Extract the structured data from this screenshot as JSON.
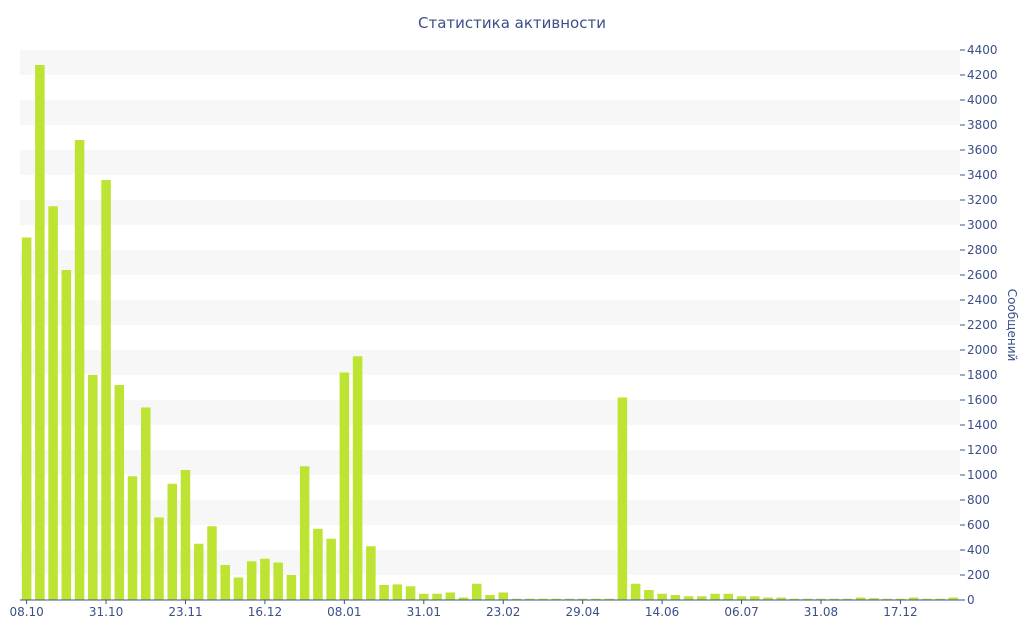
{
  "colors": {
    "bar": "#bde333",
    "band": "#f7f7f7",
    "axis_text": "#3b5088"
  },
  "chart_data": {
    "type": "bar",
    "title": "Статистика активности",
    "ylabel": "Сообщений",
    "xlabel": "",
    "ylim": [
      0,
      4400
    ],
    "y_ticks": [
      0,
      200,
      400,
      600,
      800,
      1000,
      1200,
      1400,
      1600,
      1800,
      2000,
      2200,
      2400,
      2600,
      2800,
      3000,
      3200,
      3400,
      3600,
      3800,
      4000,
      4200,
      4400
    ],
    "y_axis_side": "right",
    "grid": "alternating horizontal bands",
    "x_ticks": [
      {
        "label": "08.10",
        "index": 0
      },
      {
        "label": "31.10",
        "index": 6
      },
      {
        "label": "23.11",
        "index": 12
      },
      {
        "label": "16.12",
        "index": 18
      },
      {
        "label": "08.01",
        "index": 24
      },
      {
        "label": "31.01",
        "index": 30
      },
      {
        "label": "23.02",
        "index": 36
      },
      {
        "label": "29.04",
        "index": 42
      },
      {
        "label": "14.06",
        "index": 48
      },
      {
        "label": "06.07",
        "index": 54
      },
      {
        "label": "31.08",
        "index": 60
      },
      {
        "label": "17.12",
        "index": 66
      }
    ],
    "values": [
      2900,
      4280,
      3150,
      2640,
      3680,
      1800,
      3360,
      1720,
      990,
      1540,
      660,
      930,
      1040,
      450,
      590,
      280,
      180,
      310,
      330,
      300,
      200,
      1070,
      570,
      490,
      1820,
      1950,
      430,
      120,
      125,
      110,
      50,
      50,
      60,
      20,
      130,
      40,
      60,
      10,
      10,
      10,
      10,
      10,
      10,
      10,
      10,
      1620,
      130,
      80,
      50,
      40,
      30,
      30,
      50,
      50,
      30,
      30,
      20,
      20,
      10,
      10,
      10,
      10,
      10,
      20,
      15,
      10,
      10,
      20,
      10,
      10,
      20
    ]
  }
}
